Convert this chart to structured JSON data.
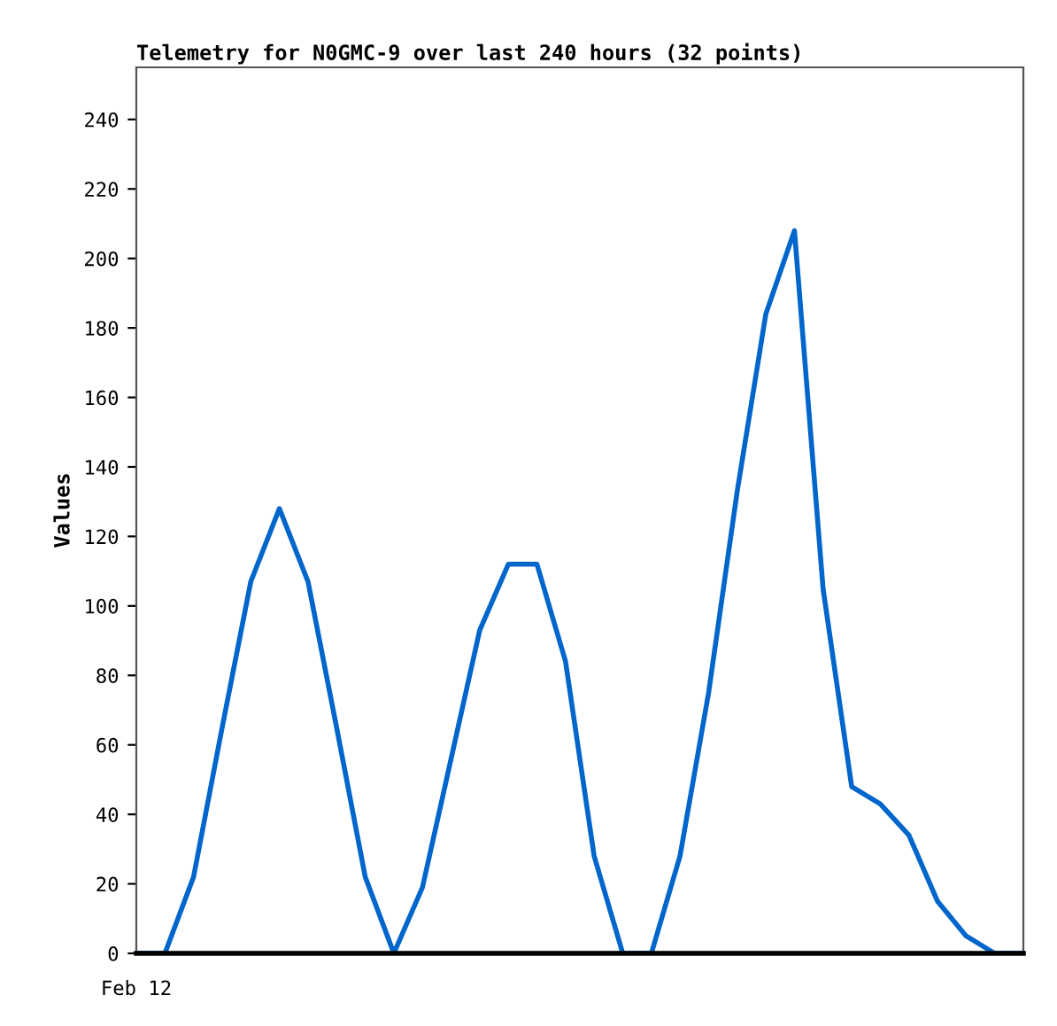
{
  "chart_data": {
    "type": "line",
    "title": "Telemetry for N0GMC-9 over last 240 hours (32 points)",
    "ylabel": "Values",
    "annotations": [
      "Feb 12"
    ],
    "categories": [
      null,
      null,
      null,
      null,
      null,
      null,
      null,
      null,
      null,
      null,
      null,
      null,
      null,
      null,
      null,
      null,
      null,
      null,
      null,
      null,
      null,
      null,
      null,
      null,
      null,
      null,
      null,
      null,
      null,
      null,
      null,
      null
    ],
    "series": [
      {
        "color": "#0066cc",
        "values": [
          0,
          0,
          22,
          65,
          107,
          128,
          107,
          65,
          22,
          0,
          19,
          56,
          93,
          112,
          112,
          84,
          28,
          0,
          0,
          28,
          75,
          133,
          184,
          208,
          105,
          48,
          43,
          34,
          15,
          5,
          0,
          0
        ]
      }
    ],
    "ylim": [
      0,
      255
    ],
    "yticks": [
      0,
      20,
      40,
      60,
      80,
      100,
      120,
      140,
      160,
      180,
      200,
      220,
      240
    ],
    "tick_labels": "y"
  }
}
